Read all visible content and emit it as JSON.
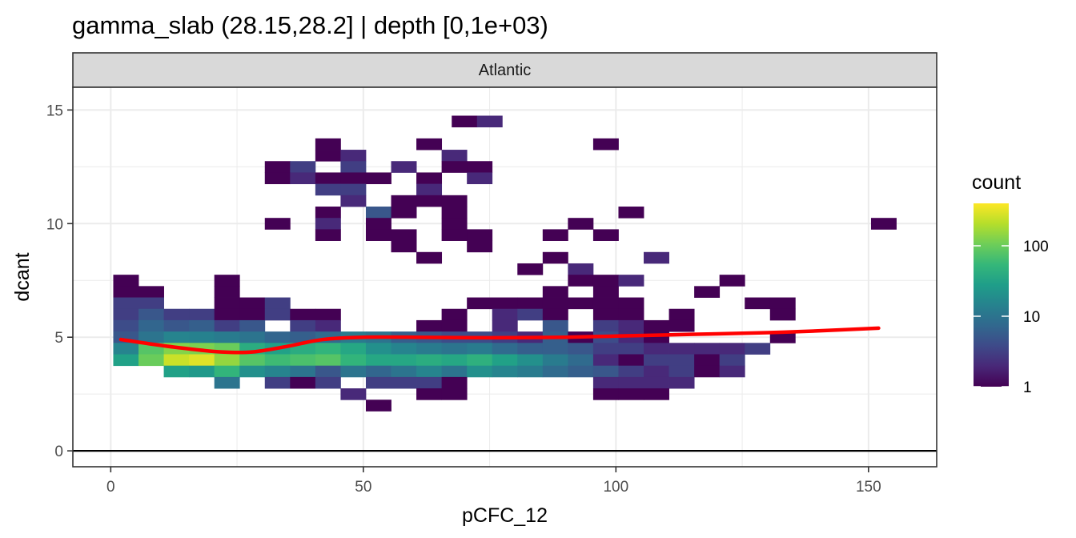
{
  "chart_data": {
    "type": "heatmap",
    "title": "gamma_slab (28.15,28.2] | depth [0,1e+03)",
    "facet": "Atlantic",
    "xlabel": "pCFC_12",
    "ylabel": "dcant",
    "xlim": [
      -7.5,
      163.5
    ],
    "ylim": [
      -0.7,
      16.0
    ],
    "x_ticks": [
      0,
      50,
      100,
      150
    ],
    "y_ticks": [
      0,
      5,
      10,
      15
    ],
    "x_tick_labels": [
      "0",
      "50",
      "100",
      "150"
    ],
    "y_tick_labels": [
      "0",
      "5",
      "10",
      "15"
    ],
    "hline_y": 0,
    "bin_width_x": 5,
    "bin_width_y": 0.5,
    "legend": {
      "title": "count",
      "scale": "log10",
      "range": [
        1,
        400
      ],
      "breaks": [
        1,
        10,
        100
      ],
      "labels": [
        "1",
        "10",
        "100"
      ],
      "position": "right"
    },
    "colors": {
      "viridis": [
        "#440154",
        "#482878",
        "#3e4a89",
        "#31688e",
        "#26828e",
        "#1f9e89",
        "#35b779",
        "#6ece58",
        "#b5de2b",
        "#fde725"
      ],
      "smooth": "#ff0000",
      "strip_fill": "#d9d9d9",
      "panel_border": "#333333",
      "grid": "#ebebeb"
    },
    "cells": [
      [
        70,
        14.5,
        1
      ],
      [
        75,
        14.5,
        2
      ],
      [
        43,
        13.5,
        1
      ],
      [
        63,
        13.5,
        1
      ],
      [
        98,
        13.5,
        1
      ],
      [
        43,
        13.0,
        1
      ],
      [
        48,
        13.0,
        2
      ],
      [
        68,
        13.0,
        2
      ],
      [
        33,
        12.5,
        1
      ],
      [
        38,
        12.5,
        3
      ],
      [
        48,
        12.5,
        3
      ],
      [
        58,
        12.5,
        2
      ],
      [
        68,
        12.5,
        1
      ],
      [
        73,
        12.5,
        1
      ],
      [
        33,
        12.0,
        1
      ],
      [
        38,
        12.0,
        2
      ],
      [
        43,
        12.0,
        1
      ],
      [
        48,
        12.0,
        1
      ],
      [
        53,
        12.0,
        1
      ],
      [
        63,
        12.0,
        1
      ],
      [
        73,
        12.0,
        2
      ],
      [
        43,
        11.5,
        3
      ],
      [
        48,
        11.5,
        3
      ],
      [
        63,
        11.5,
        2
      ],
      [
        48,
        11.0,
        2
      ],
      [
        58,
        11.0,
        1
      ],
      [
        63,
        11.0,
        1
      ],
      [
        68,
        11.0,
        1
      ],
      [
        43,
        10.5,
        1
      ],
      [
        53,
        10.5,
        5
      ],
      [
        58,
        10.5,
        1
      ],
      [
        68,
        10.5,
        1
      ],
      [
        103,
        10.5,
        1
      ],
      [
        33,
        10.0,
        1
      ],
      [
        43,
        10.0,
        2
      ],
      [
        53,
        10.0,
        1
      ],
      [
        68,
        10.0,
        1
      ],
      [
        93,
        10.0,
        1
      ],
      [
        153,
        10.0,
        1
      ],
      [
        43,
        9.5,
        1
      ],
      [
        53,
        9.5,
        1
      ],
      [
        58,
        9.5,
        1
      ],
      [
        68,
        9.5,
        1
      ],
      [
        73,
        9.5,
        1
      ],
      [
        88,
        9.5,
        1
      ],
      [
        98,
        9.5,
        1
      ],
      [
        58,
        9.0,
        1
      ],
      [
        73,
        9.0,
        1
      ],
      [
        63,
        8.5,
        1
      ],
      [
        88,
        8.5,
        1
      ],
      [
        108,
        8.5,
        2
      ],
      [
        83,
        8.0,
        1
      ],
      [
        93,
        8.0,
        2
      ],
      [
        3,
        7.5,
        1
      ],
      [
        23,
        7.5,
        1
      ],
      [
        93,
        7.5,
        1
      ],
      [
        98,
        7.5,
        1
      ],
      [
        103,
        7.5,
        2
      ],
      [
        123,
        7.5,
        1
      ],
      [
        3,
        7.0,
        1
      ],
      [
        8,
        7.0,
        1
      ],
      [
        23,
        7.0,
        1
      ],
      [
        88,
        7.0,
        1
      ],
      [
        98,
        7.0,
        1
      ],
      [
        118,
        7.0,
        1
      ],
      [
        3,
        6.5,
        3
      ],
      [
        8,
        6.5,
        3
      ],
      [
        23,
        6.5,
        1
      ],
      [
        28,
        6.5,
        1
      ],
      [
        33,
        6.5,
        3
      ],
      [
        73,
        6.5,
        1
      ],
      [
        78,
        6.5,
        1
      ],
      [
        83,
        6.5,
        1
      ],
      [
        88,
        6.5,
        1
      ],
      [
        93,
        6.5,
        1
      ],
      [
        98,
        6.5,
        1
      ],
      [
        103,
        6.5,
        1
      ],
      [
        128,
        6.5,
        1
      ],
      [
        133,
        6.5,
        1
      ],
      [
        3,
        6.0,
        3
      ],
      [
        8,
        6.0,
        5
      ],
      [
        13,
        6.0,
        3
      ],
      [
        18,
        6.0,
        3
      ],
      [
        23,
        6.0,
        1
      ],
      [
        28,
        6.0,
        1
      ],
      [
        33,
        6.0,
        3
      ],
      [
        38,
        6.0,
        1
      ],
      [
        43,
        6.0,
        1
      ],
      [
        68,
        6.0,
        1
      ],
      [
        78,
        6.0,
        2
      ],
      [
        83,
        6.0,
        3
      ],
      [
        88,
        6.0,
        1
      ],
      [
        98,
        6.0,
        1
      ],
      [
        103,
        6.0,
        1
      ],
      [
        113,
        6.0,
        1
      ],
      [
        133,
        6.0,
        1
      ],
      [
        3,
        5.5,
        4
      ],
      [
        8,
        5.5,
        7
      ],
      [
        13,
        5.5,
        5
      ],
      [
        18,
        5.5,
        6
      ],
      [
        23,
        5.5,
        3
      ],
      [
        28,
        5.5,
        5
      ],
      [
        38,
        5.5,
        3
      ],
      [
        43,
        5.5,
        2
      ],
      [
        63,
        5.5,
        1
      ],
      [
        68,
        5.5,
        1
      ],
      [
        78,
        5.5,
        2
      ],
      [
        88,
        5.5,
        5
      ],
      [
        98,
        5.5,
        3
      ],
      [
        103,
        5.5,
        2
      ],
      [
        108,
        5.5,
        1
      ],
      [
        113,
        5.5,
        1
      ],
      [
        3,
        5.0,
        5
      ],
      [
        8,
        5.0,
        10
      ],
      [
        13,
        5.0,
        15
      ],
      [
        18,
        5.0,
        14
      ],
      [
        23,
        5.0,
        12
      ],
      [
        28,
        5.0,
        10
      ],
      [
        33,
        5.0,
        7
      ],
      [
        38,
        5.0,
        6
      ],
      [
        43,
        5.0,
        8
      ],
      [
        48,
        5.0,
        12
      ],
      [
        53,
        5.0,
        10
      ],
      [
        58,
        5.0,
        6
      ],
      [
        63,
        5.0,
        5
      ],
      [
        68,
        5.0,
        4
      ],
      [
        73,
        5.0,
        4
      ],
      [
        78,
        5.0,
        3
      ],
      [
        83,
        5.0,
        2
      ],
      [
        88,
        5.0,
        6
      ],
      [
        93,
        5.0,
        1
      ],
      [
        98,
        5.0,
        4
      ],
      [
        103,
        5.0,
        2
      ],
      [
        108,
        5.0,
        1
      ],
      [
        133,
        5.0,
        1
      ],
      [
        3,
        4.5,
        15
      ],
      [
        8,
        4.5,
        80
      ],
      [
        13,
        4.5,
        130
      ],
      [
        18,
        4.5,
        120
      ],
      [
        23,
        4.5,
        100
      ],
      [
        28,
        4.5,
        40
      ],
      [
        33,
        4.5,
        30
      ],
      [
        38,
        4.5,
        40
      ],
      [
        43,
        4.5,
        50
      ],
      [
        48,
        4.5,
        35
      ],
      [
        53,
        4.5,
        20
      ],
      [
        58,
        4.5,
        15
      ],
      [
        63,
        4.5,
        12
      ],
      [
        68,
        4.5,
        10
      ],
      [
        73,
        4.5,
        12
      ],
      [
        78,
        4.5,
        8
      ],
      [
        83,
        4.5,
        6
      ],
      [
        88,
        4.5,
        6
      ],
      [
        93,
        4.5,
        5
      ],
      [
        98,
        4.5,
        3
      ],
      [
        103,
        4.5,
        3
      ],
      [
        108,
        4.5,
        2
      ],
      [
        113,
        4.5,
        2
      ],
      [
        118,
        4.5,
        2
      ],
      [
        123,
        4.5,
        2
      ],
      [
        128,
        4.5,
        3
      ],
      [
        3,
        4.0,
        30
      ],
      [
        8,
        4.0,
        100
      ],
      [
        13,
        4.0,
        250
      ],
      [
        18,
        4.0,
        300
      ],
      [
        23,
        4.0,
        150
      ],
      [
        28,
        4.0,
        80
      ],
      [
        33,
        4.0,
        60
      ],
      [
        38,
        4.0,
        70
      ],
      [
        43,
        4.0,
        80
      ],
      [
        48,
        4.0,
        50
      ],
      [
        53,
        4.0,
        35
      ],
      [
        58,
        4.0,
        35
      ],
      [
        63,
        4.0,
        40
      ],
      [
        68,
        4.0,
        35
      ],
      [
        73,
        4.0,
        45
      ],
      [
        78,
        4.0,
        30
      ],
      [
        83,
        4.0,
        20
      ],
      [
        88,
        4.0,
        12
      ],
      [
        93,
        4.0,
        8
      ],
      [
        98,
        4.0,
        2
      ],
      [
        103,
        4.0,
        1
      ],
      [
        108,
        4.0,
        3
      ],
      [
        113,
        4.0,
        3
      ],
      [
        118,
        4.0,
        1
      ],
      [
        123,
        4.0,
        3
      ],
      [
        13,
        3.5,
        30
      ],
      [
        18,
        3.5,
        25
      ],
      [
        23,
        3.5,
        50
      ],
      [
        28,
        3.5,
        20
      ],
      [
        33,
        3.5,
        15
      ],
      [
        38,
        3.5,
        10
      ],
      [
        43,
        3.5,
        5
      ],
      [
        48,
        3.5,
        10
      ],
      [
        53,
        3.5,
        7
      ],
      [
        58,
        3.5,
        10
      ],
      [
        63,
        3.5,
        15
      ],
      [
        68,
        3.5,
        10
      ],
      [
        73,
        3.5,
        20
      ],
      [
        78,
        3.5,
        15
      ],
      [
        83,
        3.5,
        12
      ],
      [
        88,
        3.5,
        8
      ],
      [
        93,
        3.5,
        6
      ],
      [
        98,
        3.5,
        5
      ],
      [
        103,
        3.5,
        3
      ],
      [
        108,
        3.5,
        2
      ],
      [
        113,
        3.5,
        3
      ],
      [
        118,
        3.5,
        1
      ],
      [
        123,
        3.5,
        2
      ],
      [
        23,
        3.0,
        10
      ],
      [
        33,
        3.0,
        3
      ],
      [
        38,
        3.0,
        1
      ],
      [
        43,
        3.0,
        3
      ],
      [
        53,
        3.0,
        3
      ],
      [
        58,
        3.0,
        3
      ],
      [
        63,
        3.0,
        3
      ],
      [
        68,
        3.0,
        1
      ],
      [
        98,
        3.0,
        2
      ],
      [
        103,
        3.0,
        2
      ],
      [
        108,
        3.0,
        2
      ],
      [
        113,
        3.0,
        2
      ],
      [
        48,
        2.5,
        2
      ],
      [
        63,
        2.5,
        1
      ],
      [
        68,
        2.5,
        1
      ],
      [
        98,
        2.5,
        1
      ],
      [
        103,
        2.5,
        1
      ],
      [
        108,
        2.5,
        1
      ],
      [
        53,
        2.0,
        1
      ]
    ],
    "smooth_line": {
      "x": [
        2,
        8,
        15,
        22,
        28,
        35,
        42,
        50,
        60,
        70,
        80,
        90,
        100,
        110,
        120,
        130,
        140,
        152
      ],
      "y": [
        4.9,
        4.7,
        4.5,
        4.35,
        4.35,
        4.6,
        4.9,
        5.0,
        5.0,
        4.98,
        4.98,
        5.0,
        5.05,
        5.1,
        5.15,
        5.2,
        5.28,
        5.4
      ]
    }
  }
}
